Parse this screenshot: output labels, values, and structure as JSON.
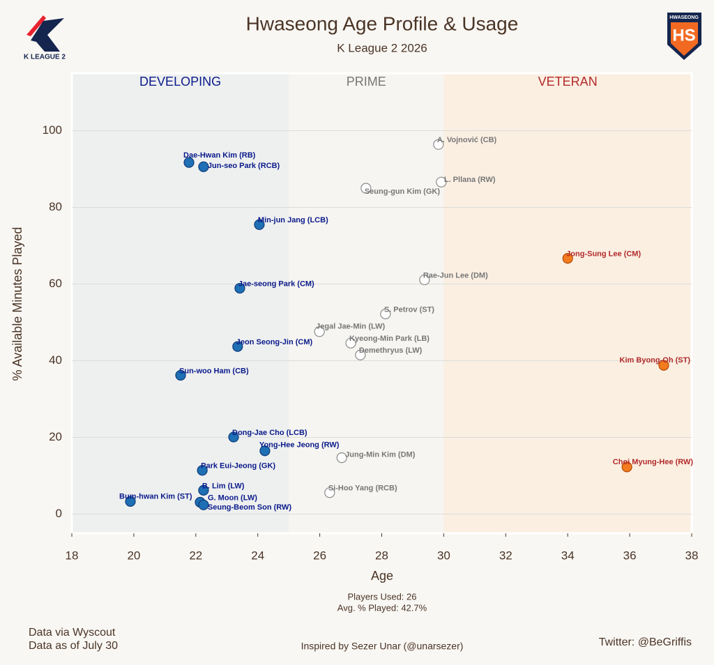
{
  "chart_data": {
    "type": "scatter",
    "title": "Hwaseong Age Profile & Usage",
    "subtitle": "K League 2 2026",
    "xlabel": "Age",
    "ylabel": "% Available Minutes Played",
    "xlim": [
      18,
      38
    ],
    "ylim": [
      -5,
      115
    ],
    "xticks": [
      18,
      20,
      22,
      24,
      26,
      28,
      30,
      32,
      34,
      36,
      38
    ],
    "yticks": [
      0,
      20,
      40,
      60,
      80,
      100
    ],
    "grid": true,
    "series": [
      {
        "name": "DEVELOPING",
        "color": "#1f6fb4",
        "edge_color": "#0d3b78",
        "label_color": "#0a1a8a",
        "band_color": "#eef0f0",
        "xrange": [
          18,
          25
        ],
        "labels": [
          "Dae-Hwan Kim (RB)",
          "Jun-seo Park (RCB)",
          "Min-jun Jang (LCB)",
          "Jae-seong Park (CM)",
          "Jeon Seong-Jin (CM)",
          "Sun-woo Ham (CB)",
          "Dong-Jae Cho (LCB)",
          "Yong-Hee Jeong (RW)",
          "Park Eui-Jeong (GK)",
          "B. Lim (LW)",
          "G. Moon (LW)",
          "Seung-Beom Son (RW)",
          "Bum-hwan Kim (ST)"
        ],
        "x": [
          21.78,
          22.25,
          24.05,
          23.42,
          23.35,
          21.51,
          23.22,
          24.23,
          22.21,
          22.25,
          22.14,
          22.25,
          19.89
        ],
        "y": [
          91.7,
          90.6,
          75.5,
          58.9,
          43.7,
          36.2,
          20.1,
          16.5,
          11.4,
          6.2,
          3.1,
          2.4,
          3.3
        ]
      },
      {
        "name": "PRIME",
        "color": "#ffffff",
        "edge_color": "#8a8a8a",
        "label_color": "#777777",
        "band_color": "#f6f5f1",
        "xrange": [
          25,
          30
        ],
        "labels": [
          "A. Vojnović (CB)",
          "L. Pllana (RW)",
          "Seung-gun Kim (GK)",
          "Rae-Jun Lee (DM)",
          "S. Petrov (ST)",
          "Jegal Jae-Min (LW)",
          "Kyeong-Min Park (LB)",
          "Demethryus (LW)",
          "Jung-Min Kim (DM)",
          "Si-Hoo Yang (RCB)"
        ],
        "x": [
          29.83,
          29.92,
          27.49,
          29.38,
          28.12,
          25.99,
          27.0,
          27.31,
          26.71,
          26.32
        ],
        "y": [
          96.4,
          86.6,
          85.0,
          61.1,
          52.2,
          47.6,
          44.6,
          41.5,
          14.7,
          5.6
        ]
      },
      {
        "name": "VETERAN",
        "color": "#f47c20",
        "edge_color": "#b34a00",
        "label_color": "#b22a2a",
        "band_color": "#fbefe2",
        "xrange": [
          30,
          38
        ],
        "labels": [
          "Jong-Sung Lee (CM)",
          "Kim Byong-Oh (ST)",
          "Choi Myung-Hee (RW)"
        ],
        "x": [
          34.0,
          37.1,
          35.91
        ],
        "y": [
          66.7,
          38.8,
          12.3
        ]
      }
    ],
    "annotations": [
      "Players Used: 26",
      "Avg. % Played: 42.7%"
    ],
    "footer": {
      "left": [
        "Data via Wyscout",
        "Data as of July 30"
      ],
      "center": "Inspired by Sezer Unar (@unarsezer)",
      "right": "Twitter: @BeGriffis"
    },
    "logos": {
      "left": "K LEAGUE 2",
      "right": "HWASEONG"
    }
  }
}
